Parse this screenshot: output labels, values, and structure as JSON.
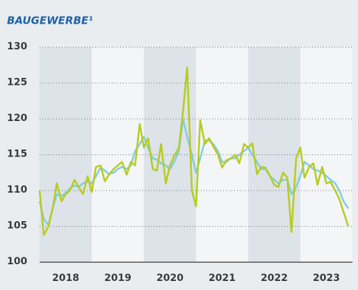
{
  "chart_data": {
    "type": "line",
    "title": "BAUGEWERBE¹",
    "x": [
      2018.0,
      2018.08,
      2018.17,
      2018.25,
      2018.33,
      2018.42,
      2018.5,
      2018.58,
      2018.67,
      2018.75,
      2018.83,
      2018.92,
      2019.0,
      2019.08,
      2019.17,
      2019.25,
      2019.33,
      2019.42,
      2019.5,
      2019.58,
      2019.67,
      2019.75,
      2019.83,
      2019.92,
      2020.0,
      2020.08,
      2020.17,
      2020.25,
      2020.33,
      2020.42,
      2020.5,
      2020.58,
      2020.67,
      2020.75,
      2020.83,
      2020.92,
      2021.0,
      2021.08,
      2021.17,
      2021.25,
      2021.33,
      2021.42,
      2021.5,
      2021.58,
      2021.67,
      2021.75,
      2021.83,
      2021.92,
      2022.0,
      2022.08,
      2022.17,
      2022.25,
      2022.33,
      2022.42,
      2022.5,
      2022.58,
      2022.67,
      2022.75,
      2022.83,
      2022.92,
      2023.0,
      2023.08,
      2023.17,
      2023.25,
      2023.33,
      2023.42,
      2023.5,
      2023.58,
      2023.67,
      2023.75,
      2023.83,
      2023.92
    ],
    "series": [
      {
        "color": "#82cde0",
        "values": [
          108.5,
          106,
          105.2,
          107.5,
          109.5,
          109.2,
          109.7,
          110.3,
          110.7,
          110.5,
          111,
          111.3,
          111,
          112,
          113.2,
          112.8,
          112.3,
          112.5,
          113,
          113.3,
          113,
          113.5,
          115.5,
          116.5,
          117.5,
          116,
          114.5,
          114.3,
          113.8,
          113.5,
          113,
          114,
          115.5,
          120,
          117.5,
          115,
          112.5,
          114.5,
          117,
          117,
          116.5,
          115.5,
          114,
          114,
          114.5,
          114.5,
          115,
          115.5,
          116,
          115,
          114,
          113,
          113,
          112,
          111.5,
          111,
          111.5,
          111.5,
          109.5,
          110.5,
          112,
          114,
          113.5,
          113,
          112.8,
          112.5,
          112,
          111.5,
          111,
          110,
          108.5,
          107.5
        ]
      },
      {
        "color": "#b8cc1e",
        "values": [
          110,
          103.8,
          105,
          107.5,
          111,
          108.5,
          109.5,
          110,
          111.5,
          110.5,
          109.5,
          112,
          109.8,
          113.3,
          113.5,
          111.3,
          112.2,
          113,
          113.5,
          114,
          112.2,
          114,
          113.5,
          119.3,
          116,
          117.3,
          113,
          112.8,
          116.5,
          111,
          113.5,
          114.8,
          116,
          121,
          127.2,
          110,
          107.8,
          119.8,
          116.5,
          117.3,
          116.2,
          115,
          113.2,
          114.2,
          114.5,
          115,
          113.8,
          116.5,
          116,
          116.6,
          112.3,
          113.3,
          113.2,
          112,
          110.8,
          110.5,
          112.5,
          111.8,
          104.2,
          114.5,
          116,
          111.8,
          113.3,
          113.8,
          110.8,
          113.3,
          111,
          111.2,
          110,
          108.8,
          107,
          105
        ]
      }
    ],
    "xlim": [
      2018,
      2024
    ],
    "xticks": [
      {
        "value": 2018.5,
        "label": "2018"
      },
      {
        "value": 2019.5,
        "label": "2019"
      },
      {
        "value": 2020.5,
        "label": "2020"
      },
      {
        "value": 2021.5,
        "label": "2021"
      },
      {
        "value": 2022.5,
        "label": "2022"
      },
      {
        "value": 2023.5,
        "label": "2023"
      }
    ],
    "ylim": [
      100,
      130
    ],
    "yticks": [
      100,
      105,
      110,
      115,
      120,
      125,
      130
    ],
    "grid": true
  }
}
